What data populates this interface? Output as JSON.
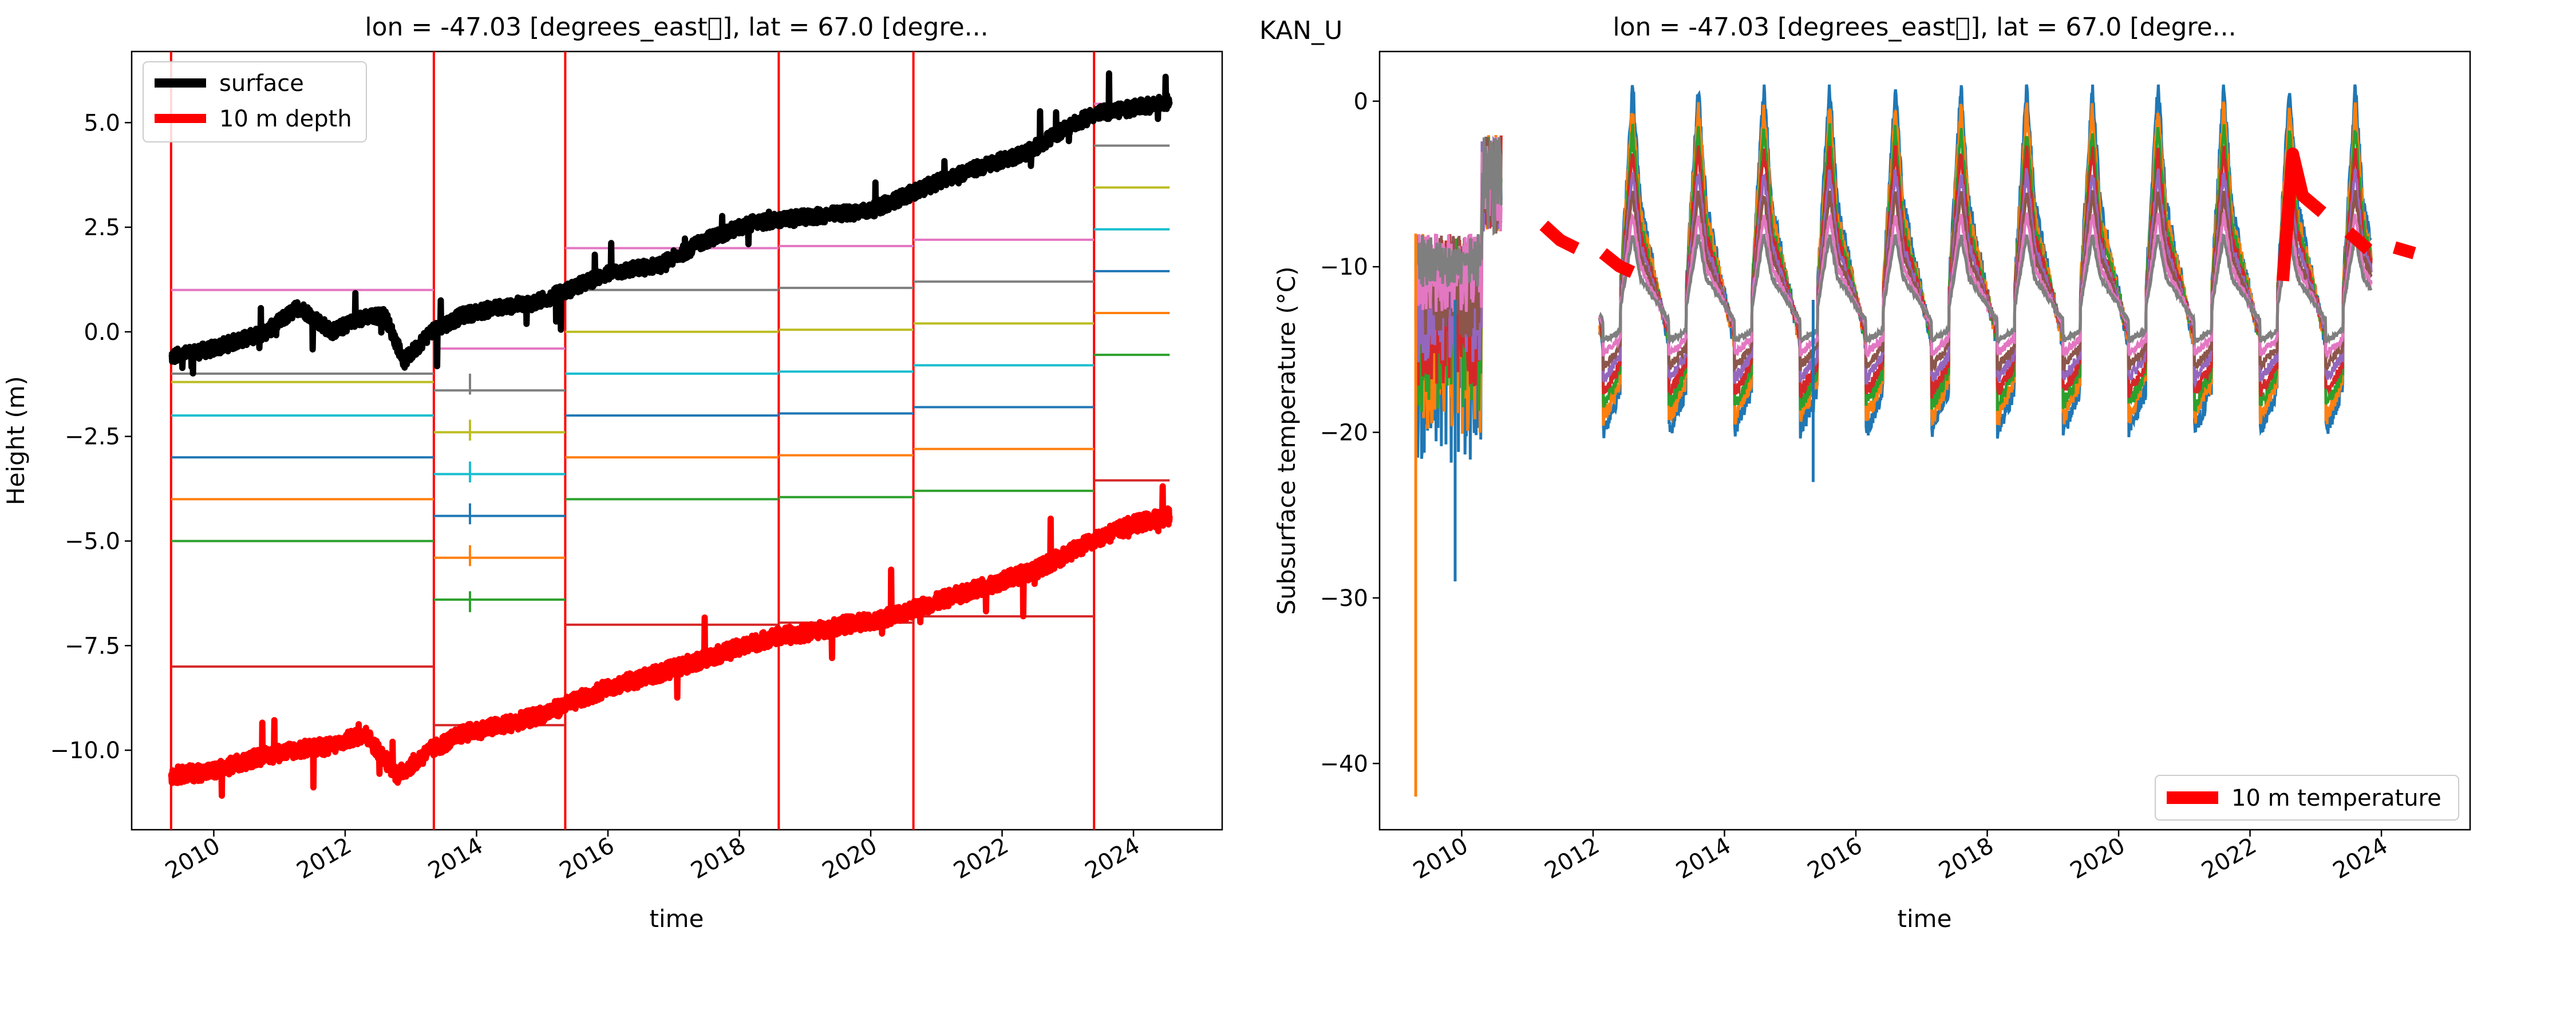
{
  "figure": {
    "suptitle": "KAN_U"
  },
  "chart_data": [
    {
      "type": "line",
      "title": "lon = -47.03 [degrees_east\u0000], lat = 67.0 [degre...",
      "xlabel": "time",
      "ylabel": "Height (m)",
      "xlim": [
        2008.75,
        2025.35
      ],
      "ylim": [
        -11.9,
        6.7
      ],
      "x_ticks": [
        "2010",
        "2012",
        "2014",
        "2016",
        "2018",
        "2020",
        "2022",
        "2024"
      ],
      "y_ticks": [
        "−10.0",
        "−7.5",
        "−5.0",
        "−2.5",
        "0.0",
        "2.5",
        "5.0"
      ],
      "y_tick_values": [
        -10,
        -7.5,
        -5,
        -2.5,
        0,
        2.5,
        5
      ],
      "legend": {
        "placement": "upper left",
        "entries": [
          "surface",
          "10 m depth"
        ]
      },
      "grid": false,
      "series": [
        {
          "name": "surface",
          "color": "#000000",
          "x": [
            2009.35,
            2010.0,
            2010.8,
            2011.3,
            2011.8,
            2012.2,
            2012.6,
            2012.9,
            2013.3,
            2013.8,
            2014.4,
            2014.9,
            2015.4,
            2016.0,
            2016.8,
            2017.5,
            2018.2,
            2018.8,
            2019.4,
            2020.0,
            2020.6,
            2021.2,
            2021.8,
            2022.4,
            2022.9,
            2023.4,
            2023.8,
            2024.2,
            2024.55
          ],
          "values": [
            -0.6,
            -0.4,
            0.0,
            0.6,
            0.0,
            0.3,
            0.4,
            -0.7,
            0.0,
            0.4,
            0.6,
            0.7,
            1.0,
            1.4,
            1.6,
            2.2,
            2.6,
            2.7,
            2.8,
            2.9,
            3.3,
            3.7,
            4.0,
            4.3,
            4.8,
            5.2,
            5.3,
            5.4,
            5.5
          ]
        },
        {
          "name": "10 m depth",
          "color": "#ff0000",
          "x": [
            2009.35,
            2010.0,
            2010.6,
            2011.2,
            2011.8,
            2012.3,
            2012.8,
            2013.3,
            2013.8,
            2014.4,
            2014.9,
            2015.4,
            2016.0,
            2016.7,
            2017.3,
            2017.9,
            2018.5,
            2019.0,
            2019.6,
            2020.1,
            2020.7,
            2021.3,
            2021.9,
            2022.5,
            2023.0,
            2023.5,
            2024.0,
            2024.55
          ],
          "values": [
            -10.6,
            -10.5,
            -10.2,
            -10.0,
            -9.9,
            -9.6,
            -10.6,
            -10.0,
            -9.6,
            -9.4,
            -9.2,
            -8.9,
            -8.5,
            -8.2,
            -7.9,
            -7.6,
            -7.3,
            -7.2,
            -7.0,
            -6.9,
            -6.6,
            -6.3,
            -6.0,
            -5.7,
            -5.3,
            -4.9,
            -4.6,
            -4.4
          ]
        }
      ],
      "installation_lines_x": [
        2009.35,
        2013.35,
        2015.35,
        2018.6,
        2020.65,
        2023.4
      ],
      "sensor_depth_segments": [
        {
          "x": [
            2009.35,
            2013.35
          ],
          "levels": [
            1.0,
            -1.0,
            -1.2,
            -2.0,
            -3.0,
            -4.0,
            -5.0,
            -8.0
          ]
        },
        {
          "x": [
            2013.35,
            2015.35
          ],
          "levels": [
            -0.4,
            -1.4,
            -2.4,
            -3.4,
            -4.4,
            -5.4,
            -6.4,
            -9.4
          ]
        },
        {
          "x": [
            2015.35,
            2018.6
          ],
          "levels": [
            2.0,
            1.0,
            0.0,
            -1.0,
            -2.0,
            -3.0,
            -4.0,
            -7.0
          ]
        },
        {
          "x": [
            2018.6,
            2020.65
          ],
          "levels": [
            2.05,
            1.05,
            0.05,
            -0.95,
            -1.95,
            -2.95,
            -3.95,
            -6.95
          ]
        },
        {
          "x": [
            2020.65,
            2023.4
          ],
          "levels": [
            2.2,
            1.2,
            0.2,
            -0.8,
            -1.8,
            -2.8,
            -3.8,
            -6.8
          ]
        },
        {
          "x": [
            2023.4,
            2024.55
          ],
          "levels": [
            5.45,
            4.45,
            3.45,
            2.45,
            1.45,
            0.45,
            -0.55,
            -3.55
          ]
        }
      ],
      "sensor_colors": [
        "#e377c2",
        "#7f7f7f",
        "#bcbd22",
        "#17becf",
        "#1f77b4",
        "#ff7f0e",
        "#2ca02c",
        "#d62728"
      ]
    },
    {
      "type": "line",
      "title": "lon = -47.03 [degrees_east\u0000], lat = 67.0 [degre...",
      "xlabel": "time",
      "ylabel": "Subsurface temperature (°C)",
      "xlim": [
        2008.75,
        2025.35
      ],
      "ylim": [
        -44,
        3
      ],
      "x_ticks": [
        "2010",
        "2012",
        "2014",
        "2016",
        "2018",
        "2020",
        "2022",
        "2024"
      ],
      "y_ticks": [
        "−40",
        "−30",
        "−20",
        "−10",
        "0"
      ],
      "y_tick_values": [
        -40,
        -30,
        -20,
        -10,
        0
      ],
      "legend": {
        "placement": "lower right",
        "entries": [
          "10 m temperature"
        ]
      },
      "grid": false,
      "summer_peaks_x": [
        2012.6,
        2013.55,
        2014.55,
        2015.55,
        2016.5,
        2017.55,
        2018.55,
        2019.55,
        2020.55,
        2021.55,
        2022.55
      ],
      "series": [
        {
          "name": "10 m temperature",
          "color": "#ff0000",
          "x": [
            2011.25,
            2011.5,
            2011.75,
            2012.15,
            2012.4,
            2012.6,
            2013.0,
            2013.5,
            2014.0,
            2014.5,
            2015.0,
            2015.5,
            2016.0,
            2016.5,
            2017.0,
            2017.5,
            2018.0,
            2018.5,
            2019.0,
            2019.5,
            2020.0,
            2020.5,
            2021.0,
            2021.5,
            2022.0,
            2022.5,
            2022.65,
            2022.8,
            2023.1,
            2023.5,
            2023.8,
            2024.2,
            2024.5
          ],
          "values": [
            -7.5,
            -8.2,
            -9.0,
            -9.0,
            -10.2,
            -10.5,
            -9.5,
            -8.2,
            -8.8,
            -9.8,
            -9.2,
            -10.5,
            -10.2,
            -11.2,
            -11.5,
            -10.5,
            -11.2,
            -12.0,
            -11.0,
            -11.2,
            -10.5,
            -11.5,
            -10.8,
            -11.0,
            -10.5,
            -10.8,
            -3.0,
            -5.5,
            -7.0,
            -8.0,
            -9.2,
            -8.6,
            -9.0
          ]
        }
      ]
    }
  ]
}
